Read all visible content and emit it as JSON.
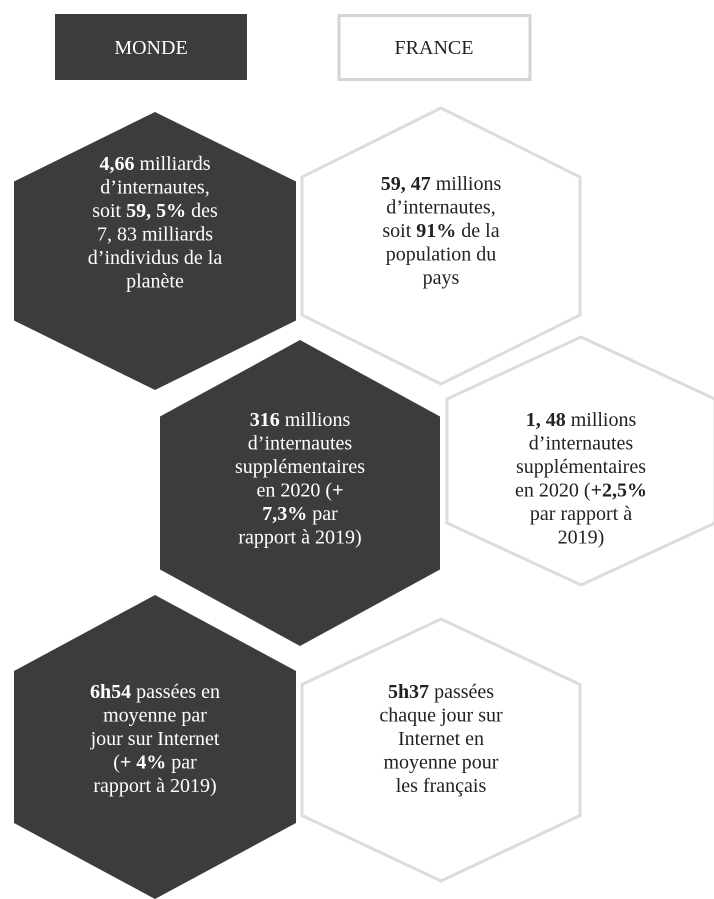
{
  "headers": [
    "MONDE",
    "FRANCE"
  ],
  "hexagons": [
    {
      "lines": [
        [
          {
            "text": "4,66",
            "bold": true
          },
          {
            "text": " milliards"
          }
        ],
        [
          {
            "text": "d’internautes,"
          }
        ],
        [
          {
            "text": "soit "
          },
          {
            "text": "59, 5%",
            "bold": true
          },
          {
            "text": " des"
          }
        ],
        [
          {
            "text": "7, 83 milliards"
          }
        ],
        [
          {
            "text": "d’individus de la"
          }
        ],
        [
          {
            "text": "planète"
          }
        ]
      ]
    },
    {
      "lines": [
        [
          {
            "text": "59, 47",
            "bold": true
          },
          {
            "text": " millions"
          }
        ],
        [
          {
            "text": "d’internautes,"
          }
        ],
        [
          {
            "text": "soit "
          },
          {
            "text": "91%",
            "bold": true
          },
          {
            "text": " de la"
          }
        ],
        [
          {
            "text": "population du"
          }
        ],
        [
          {
            "text": "pays"
          }
        ]
      ]
    },
    {
      "lines": [
        [
          {
            "text": "316",
            "bold": true
          },
          {
            "text": " millions"
          }
        ],
        [
          {
            "text": "d’internautes"
          }
        ],
        [
          {
            "text": "supplémentaires"
          }
        ],
        [
          {
            "text": "en 2020 ("
          },
          {
            "text": "+",
            "bold": true
          }
        ],
        [
          {
            "text": "7,3%",
            "bold": true
          },
          {
            "text": " par"
          }
        ],
        [
          {
            "text": "rapport à 2019)"
          }
        ]
      ]
    },
    {
      "lines": [
        [
          {
            "text": "1, 48",
            "bold": true
          },
          {
            "text": " millions"
          }
        ],
        [
          {
            "text": "d’internautes"
          }
        ],
        [
          {
            "text": "supplémentaires"
          }
        ],
        [
          {
            "text": "en 2020 ("
          },
          {
            "text": "+2,5%",
            "bold": true
          }
        ],
        [
          {
            "text": "par rapport à"
          }
        ],
        [
          {
            "text": "2019)"
          }
        ]
      ]
    },
    {
      "lines": [
        [
          {
            "text": "6h54",
            "bold": true
          },
          {
            "text": " passées en"
          }
        ],
        [
          {
            "text": "moyenne par"
          }
        ],
        [
          {
            "text": "jour sur Internet"
          }
        ],
        [
          {
            "text": "("
          },
          {
            "text": "+ 4%",
            "bold": true
          },
          {
            "text": " par"
          }
        ],
        [
          {
            "text": "rapport à 2019)"
          }
        ]
      ]
    },
    {
      "lines": [
        [
          {
            "text": "5h37",
            "bold": true
          },
          {
            "text": " passées"
          }
        ],
        [
          {
            "text": "chaque jour sur"
          }
        ],
        [
          {
            "text": "Internet en"
          }
        ],
        [
          {
            "text": "moyenne pour"
          }
        ],
        [
          {
            "text": "les français"
          }
        ]
      ]
    }
  ]
}
